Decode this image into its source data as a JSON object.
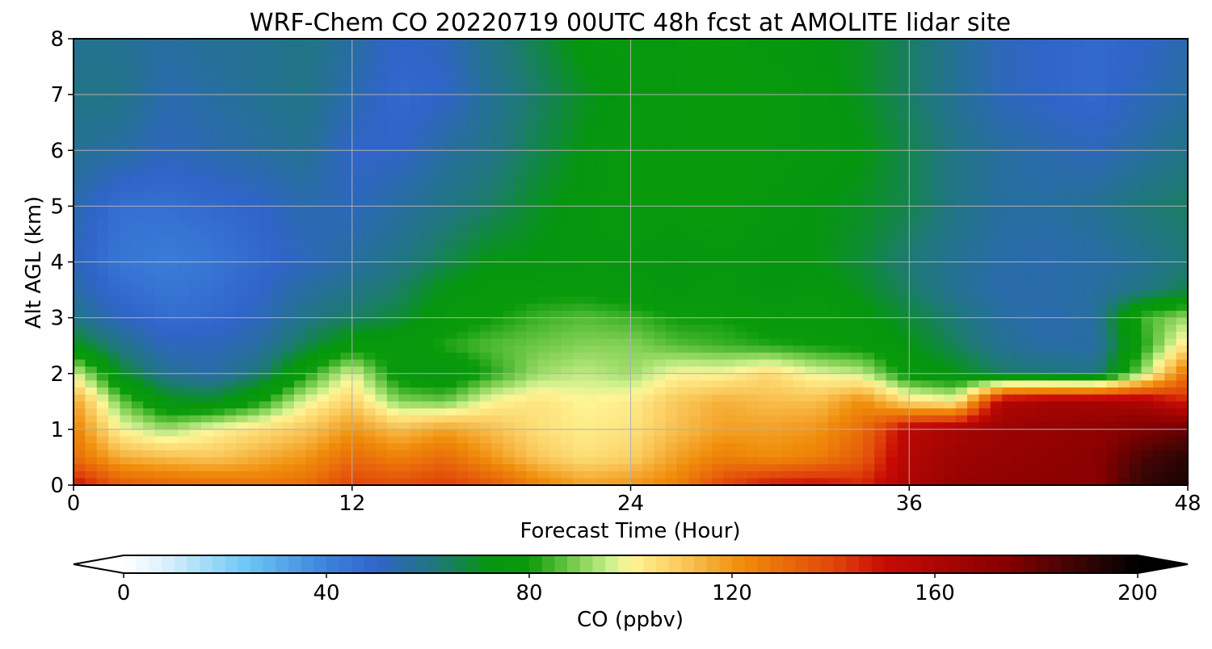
{
  "chart_data": {
    "type": "heatmap",
    "title": "WRF-Chem CO  20220719 00UTC 48h fcst at AMOLITE lidar site",
    "xlabel": "Forecast Time (Hour)",
    "ylabel": "Alt AGL (km)",
    "xlim": [
      0,
      48
    ],
    "ylim": [
      0,
      8
    ],
    "xticks": [
      0,
      12,
      24,
      36,
      48
    ],
    "yticks": [
      0,
      1,
      2,
      3,
      4,
      5,
      6,
      7,
      8
    ],
    "grid": true,
    "x": [
      0,
      2,
      4,
      6,
      8,
      10,
      12,
      14,
      16,
      18,
      20,
      22,
      24,
      26,
      28,
      30,
      32,
      34,
      36,
      38,
      40,
      42,
      44,
      46,
      48
    ],
    "y": [
      0,
      0.5,
      1,
      1.5,
      2,
      2.5,
      3,
      3.5,
      4,
      5,
      6,
      7,
      8
    ],
    "z": [
      [
        150,
        135,
        132,
        130,
        128,
        130,
        140,
        138,
        142,
        135,
        125,
        118,
        120,
        125,
        140,
        148,
        150,
        145,
        160,
        168,
        170,
        172,
        172,
        190,
        195
      ],
      [
        130,
        115,
        112,
        110,
        115,
        120,
        130,
        125,
        130,
        120,
        110,
        105,
        108,
        118,
        125,
        122,
        125,
        135,
        158,
        165,
        168,
        170,
        172,
        185,
        192
      ],
      [
        125,
        100,
        92,
        100,
        105,
        110,
        120,
        112,
        118,
        112,
        105,
        102,
        104,
        112,
        118,
        118,
        120,
        130,
        155,
        162,
        166,
        168,
        170,
        175,
        180
      ],
      [
        118,
        88,
        72,
        70,
        80,
        98,
        108,
        90,
        88,
        100,
        104,
        100,
        102,
        110,
        115,
        112,
        112,
        122,
        105,
        100,
        158,
        162,
        162,
        160,
        145
      ],
      [
        98,
        70,
        58,
        55,
        62,
        80,
        98,
        76,
        72,
        82,
        92,
        95,
        92,
        100,
        100,
        106,
        98,
        95,
        76,
        72,
        64,
        62,
        60,
        90,
        130
      ],
      [
        72,
        60,
        52,
        52,
        56,
        66,
        76,
        76,
        82,
        86,
        88,
        90,
        90,
        86,
        84,
        82,
        80,
        78,
        72,
        65,
        58,
        55,
        55,
        80,
        105
      ],
      [
        60,
        52,
        47,
        48,
        52,
        60,
        64,
        68,
        76,
        80,
        84,
        86,
        84,
        80,
        80,
        76,
        78,
        74,
        68,
        62,
        56,
        54,
        56,
        84,
        92
      ],
      [
        55,
        47,
        44,
        46,
        50,
        56,
        60,
        64,
        72,
        76,
        78,
        78,
        76,
        74,
        76,
        72,
        74,
        70,
        64,
        58,
        54,
        55,
        56,
        60,
        66
      ],
      [
        52,
        44,
        42,
        44,
        48,
        52,
        56,
        60,
        66,
        72,
        72,
        74,
        74,
        72,
        74,
        72,
        72,
        68,
        62,
        58,
        55,
        54,
        55,
        58,
        62
      ],
      [
        54,
        46,
        46,
        48,
        50,
        54,
        52,
        56,
        60,
        64,
        70,
        74,
        76,
        76,
        78,
        74,
        72,
        70,
        66,
        60,
        56,
        56,
        58,
        62,
        64
      ],
      [
        58,
        56,
        52,
        54,
        56,
        58,
        50,
        50,
        56,
        60,
        66,
        72,
        76,
        76,
        78,
        76,
        74,
        72,
        66,
        60,
        56,
        54,
        52,
        56,
        60
      ],
      [
        60,
        60,
        54,
        56,
        58,
        60,
        54,
        48,
        50,
        58,
        64,
        70,
        74,
        76,
        78,
        76,
        74,
        70,
        64,
        58,
        52,
        50,
        48,
        52,
        56
      ],
      [
        58,
        58,
        56,
        58,
        58,
        60,
        56,
        50,
        52,
        60,
        66,
        74,
        76,
        76,
        78,
        74,
        72,
        70,
        64,
        58,
        52,
        50,
        48,
        50,
        54
      ]
    ],
    "colorbar": {
      "label": "CO  (ppbv)",
      "ticks": [
        0,
        40,
        80,
        120,
        160,
        200
      ],
      "range": [
        0,
        200
      ],
      "extend": "both",
      "orientation": "horizontal"
    }
  }
}
